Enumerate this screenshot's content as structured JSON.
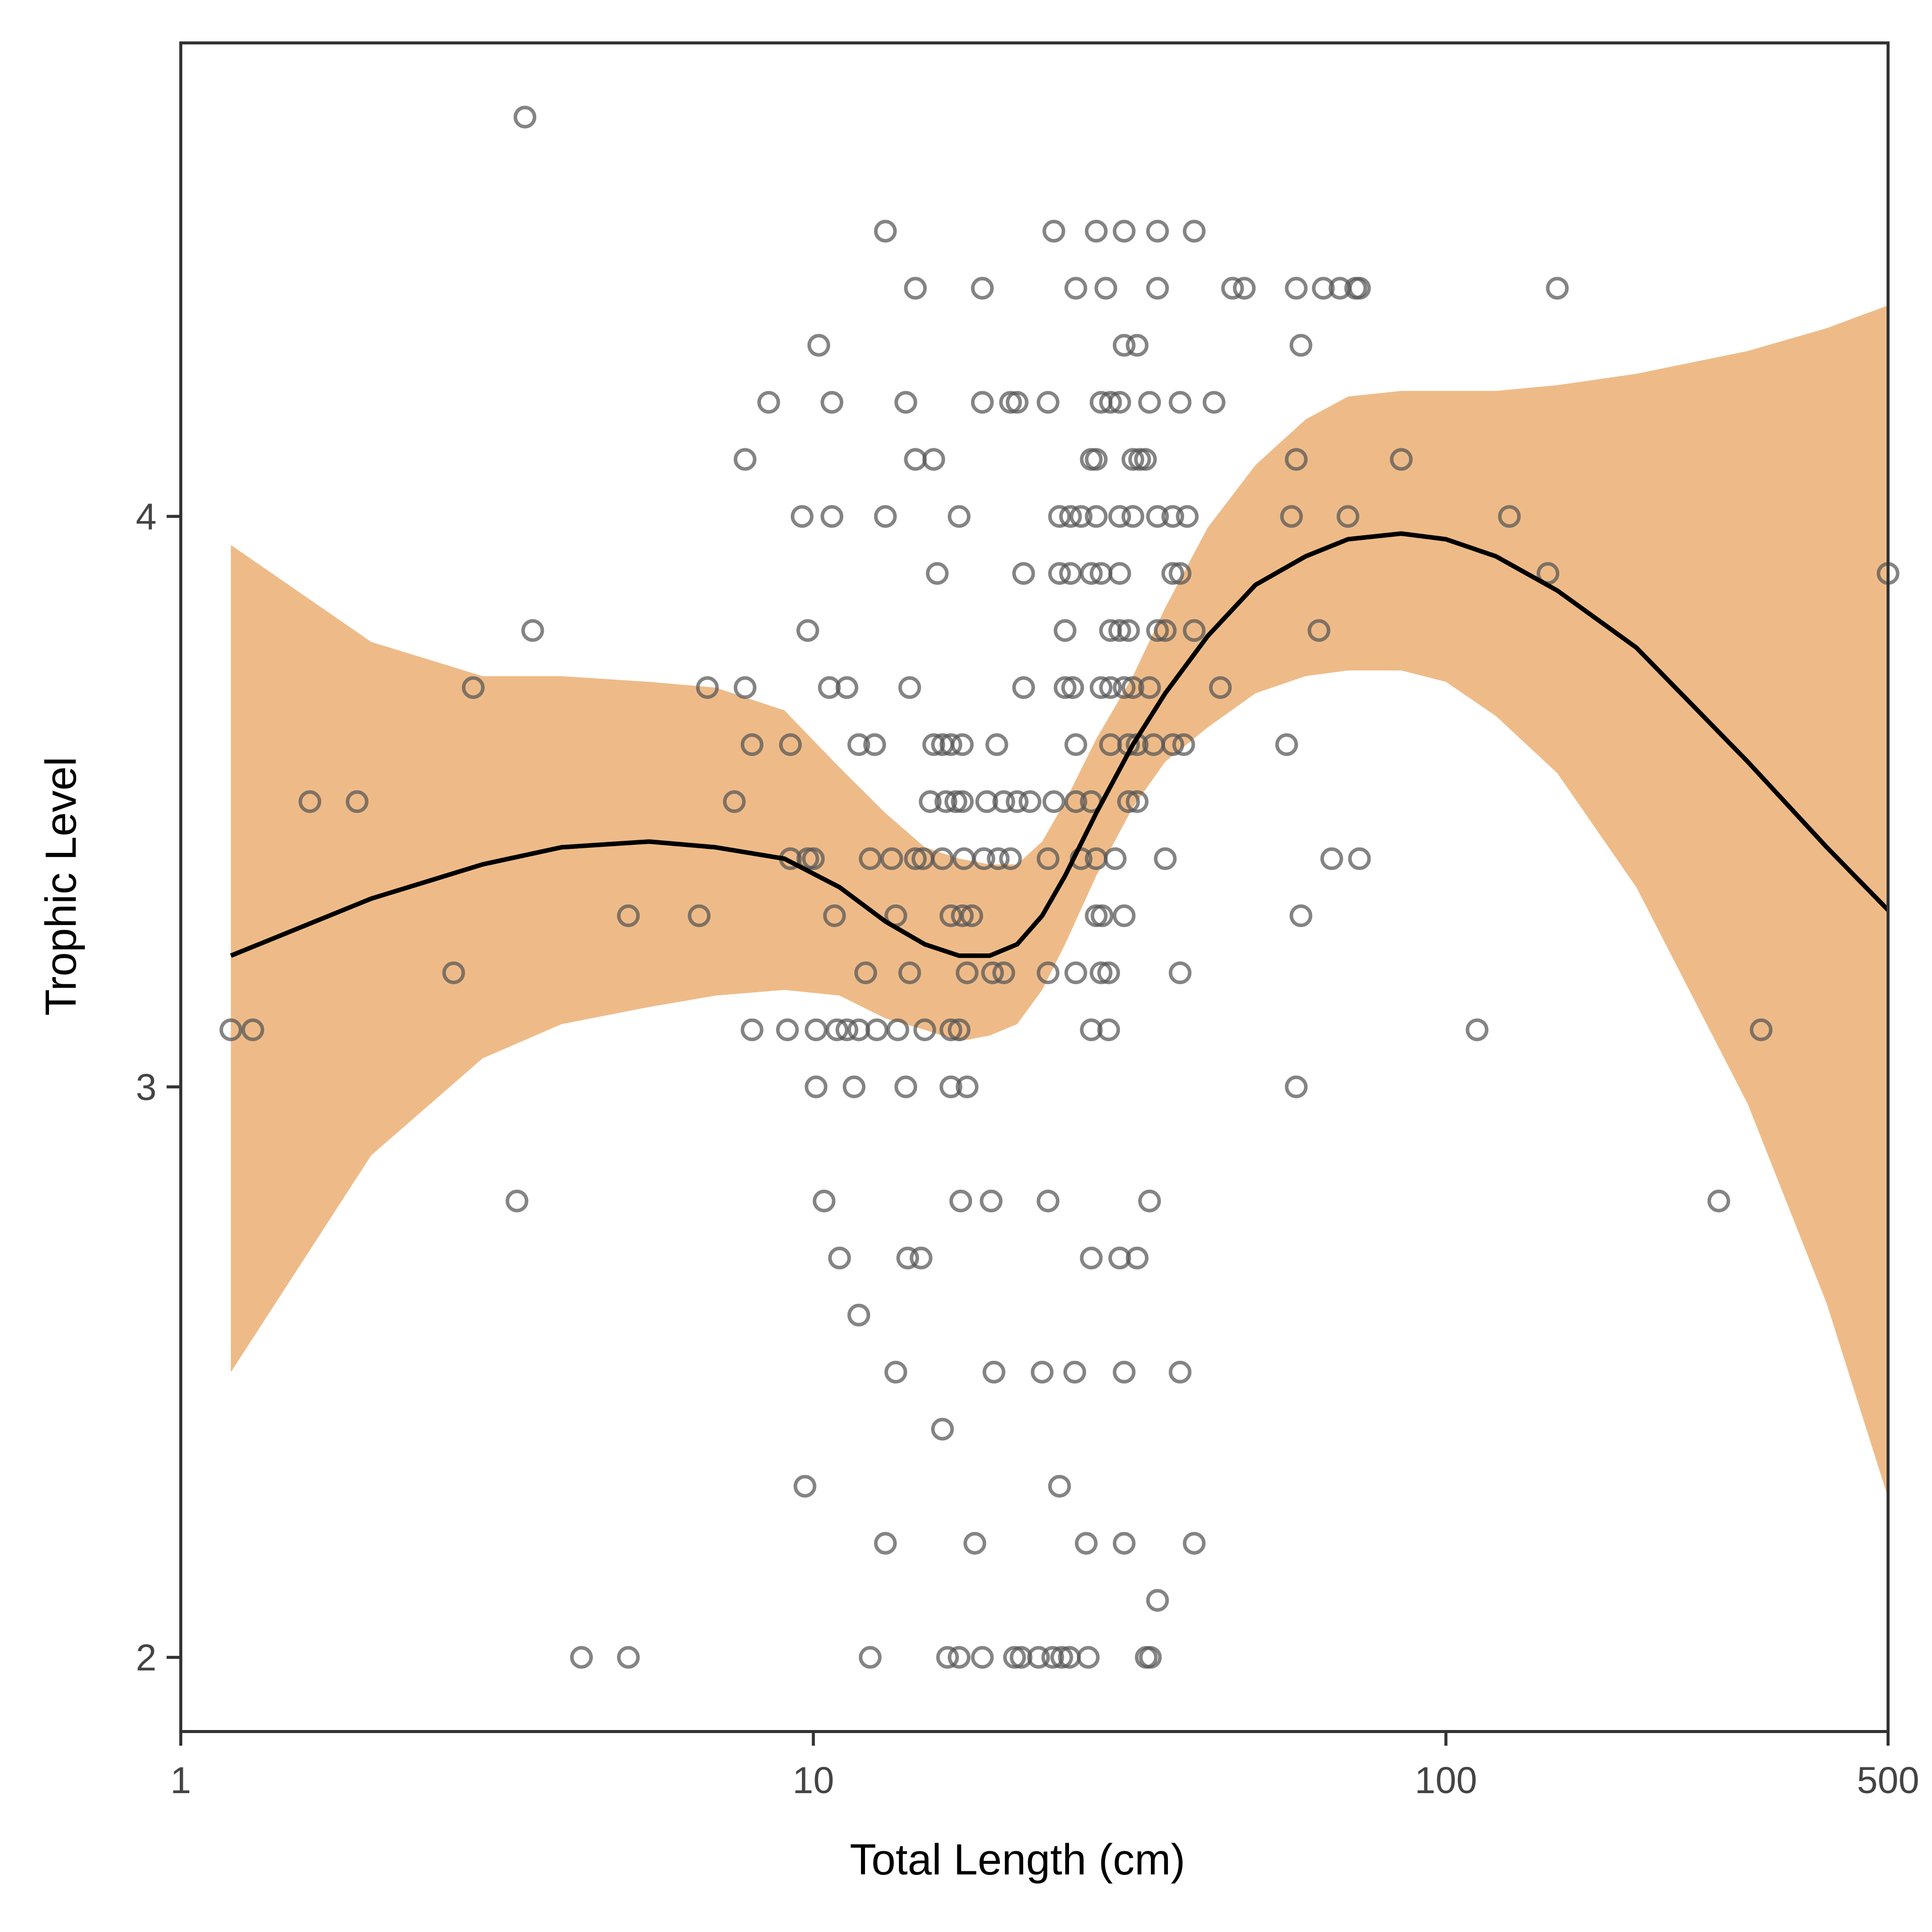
{
  "chart_data": {
    "type": "scatter",
    "title": "",
    "xlabel": "Total Length (cm)",
    "ylabel": "Trophic Level",
    "x_scale": "log10",
    "xlim": [
      1,
      500
    ],
    "ylim": [
      1.87,
      4.83
    ],
    "x_ticks": [
      1,
      10,
      100,
      500
    ],
    "x_tick_labels": [
      "1",
      "10",
      "100",
      "500"
    ],
    "y_ticks": [
      2,
      3,
      4
    ],
    "y_tick_labels": [
      "2",
      "3",
      "4"
    ],
    "grid": false,
    "legend": "none",
    "colors": {
      "points": "#555555",
      "smooth_line": "#000000",
      "confidence_band": "#eebb88"
    },
    "points": [
      {
        "x": 3.5,
        "y": 4.7
      },
      {
        "x": 13,
        "y": 4.5
      },
      {
        "x": 24,
        "y": 4.5
      },
      {
        "x": 28,
        "y": 4.5
      },
      {
        "x": 31,
        "y": 4.5
      },
      {
        "x": 35,
        "y": 4.5
      },
      {
        "x": 40,
        "y": 4.5
      },
      {
        "x": 14.5,
        "y": 4.4
      },
      {
        "x": 18.5,
        "y": 4.4
      },
      {
        "x": 26,
        "y": 4.4
      },
      {
        "x": 29,
        "y": 4.4
      },
      {
        "x": 35,
        "y": 4.4
      },
      {
        "x": 46,
        "y": 4.4
      },
      {
        "x": 48,
        "y": 4.4
      },
      {
        "x": 58,
        "y": 4.4
      },
      {
        "x": 64,
        "y": 4.4
      },
      {
        "x": 68,
        "y": 4.4
      },
      {
        "x": 72,
        "y": 4.4
      },
      {
        "x": 73,
        "y": 4.4
      },
      {
        "x": 150,
        "y": 4.4
      },
      {
        "x": 10.2,
        "y": 4.3
      },
      {
        "x": 31,
        "y": 4.3
      },
      {
        "x": 32.5,
        "y": 4.3
      },
      {
        "x": 59,
        "y": 4.3
      },
      {
        "x": 8.5,
        "y": 4.2
      },
      {
        "x": 10.7,
        "y": 4.2
      },
      {
        "x": 14,
        "y": 4.2
      },
      {
        "x": 18.5,
        "y": 4.2
      },
      {
        "x": 20.5,
        "y": 4.2
      },
      {
        "x": 21,
        "y": 4.2
      },
      {
        "x": 23.5,
        "y": 4.2
      },
      {
        "x": 28.5,
        "y": 4.2
      },
      {
        "x": 29.5,
        "y": 4.2
      },
      {
        "x": 30.5,
        "y": 4.2
      },
      {
        "x": 34,
        "y": 4.2
      },
      {
        "x": 38,
        "y": 4.2
      },
      {
        "x": 43,
        "y": 4.2
      },
      {
        "x": 7.8,
        "y": 4.1
      },
      {
        "x": 14.5,
        "y": 4.1
      },
      {
        "x": 15.5,
        "y": 4.1
      },
      {
        "x": 27.5,
        "y": 4.1
      },
      {
        "x": 28,
        "y": 4.1
      },
      {
        "x": 32,
        "y": 4.1
      },
      {
        "x": 32.8,
        "y": 4.1
      },
      {
        "x": 33.5,
        "y": 4.1
      },
      {
        "x": 58,
        "y": 4.1
      },
      {
        "x": 85,
        "y": 4.1
      },
      {
        "x": 9.6,
        "y": 4.0
      },
      {
        "x": 10.7,
        "y": 4.0
      },
      {
        "x": 13,
        "y": 4.0
      },
      {
        "x": 17,
        "y": 4.0
      },
      {
        "x": 24.5,
        "y": 4.0
      },
      {
        "x": 25.5,
        "y": 4.0
      },
      {
        "x": 26.5,
        "y": 4.0
      },
      {
        "x": 28,
        "y": 4.0
      },
      {
        "x": 30.5,
        "y": 4.0
      },
      {
        "x": 32,
        "y": 4.0
      },
      {
        "x": 35,
        "y": 4.0
      },
      {
        "x": 37,
        "y": 4.0
      },
      {
        "x": 39,
        "y": 4.0
      },
      {
        "x": 57,
        "y": 4.0
      },
      {
        "x": 70,
        "y": 4.0
      },
      {
        "x": 126,
        "y": 4.0
      },
      {
        "x": 15.7,
        "y": 3.9
      },
      {
        "x": 21.5,
        "y": 3.9
      },
      {
        "x": 24.5,
        "y": 3.9
      },
      {
        "x": 25.5,
        "y": 3.9
      },
      {
        "x": 27.5,
        "y": 3.9
      },
      {
        "x": 28.5,
        "y": 3.9
      },
      {
        "x": 30.5,
        "y": 3.9
      },
      {
        "x": 37,
        "y": 3.9
      },
      {
        "x": 38,
        "y": 3.9
      },
      {
        "x": 145,
        "y": 3.9
      },
      {
        "x": 500,
        "y": 3.9
      },
      {
        "x": 3.6,
        "y": 3.8
      },
      {
        "x": 9.8,
        "y": 3.8
      },
      {
        "x": 25,
        "y": 3.8
      },
      {
        "x": 29.5,
        "y": 3.8
      },
      {
        "x": 30.5,
        "y": 3.8
      },
      {
        "x": 31.5,
        "y": 3.8
      },
      {
        "x": 35,
        "y": 3.8
      },
      {
        "x": 36,
        "y": 3.8
      },
      {
        "x": 40,
        "y": 3.8
      },
      {
        "x": 63,
        "y": 3.8
      },
      {
        "x": 2.9,
        "y": 3.7
      },
      {
        "x": 6.8,
        "y": 3.7
      },
      {
        "x": 7.8,
        "y": 3.7
      },
      {
        "x": 10.6,
        "y": 3.7
      },
      {
        "x": 11.3,
        "y": 3.7
      },
      {
        "x": 14.2,
        "y": 3.7
      },
      {
        "x": 21.5,
        "y": 3.7
      },
      {
        "x": 25,
        "y": 3.7
      },
      {
        "x": 25.7,
        "y": 3.7
      },
      {
        "x": 28.5,
        "y": 3.7
      },
      {
        "x": 29.5,
        "y": 3.7
      },
      {
        "x": 31,
        "y": 3.7
      },
      {
        "x": 32,
        "y": 3.7
      },
      {
        "x": 34,
        "y": 3.7
      },
      {
        "x": 44,
        "y": 3.7
      },
      {
        "x": 8,
        "y": 3.6
      },
      {
        "x": 9.2,
        "y": 3.6
      },
      {
        "x": 11.8,
        "y": 3.6
      },
      {
        "x": 12.5,
        "y": 3.6
      },
      {
        "x": 15.5,
        "y": 3.6
      },
      {
        "x": 16,
        "y": 3.6
      },
      {
        "x": 16.5,
        "y": 3.6
      },
      {
        "x": 17.2,
        "y": 3.6
      },
      {
        "x": 19.5,
        "y": 3.6
      },
      {
        "x": 26,
        "y": 3.6
      },
      {
        "x": 29.5,
        "y": 3.6
      },
      {
        "x": 31.5,
        "y": 3.6
      },
      {
        "x": 32.5,
        "y": 3.6
      },
      {
        "x": 34.5,
        "y": 3.6
      },
      {
        "x": 37,
        "y": 3.6
      },
      {
        "x": 38.5,
        "y": 3.6
      },
      {
        "x": 56,
        "y": 3.6
      },
      {
        "x": 1.6,
        "y": 3.5
      },
      {
        "x": 1.9,
        "y": 3.5
      },
      {
        "x": 7.5,
        "y": 3.5
      },
      {
        "x": 15.3,
        "y": 3.5
      },
      {
        "x": 16.2,
        "y": 3.5
      },
      {
        "x": 16.8,
        "y": 3.5
      },
      {
        "x": 17.2,
        "y": 3.5
      },
      {
        "x": 18.8,
        "y": 3.5
      },
      {
        "x": 20,
        "y": 3.5
      },
      {
        "x": 21,
        "y": 3.5
      },
      {
        "x": 22,
        "y": 3.5
      },
      {
        "x": 24,
        "y": 3.5
      },
      {
        "x": 26,
        "y": 3.5
      },
      {
        "x": 27.5,
        "y": 3.5
      },
      {
        "x": 31.5,
        "y": 3.5
      },
      {
        "x": 32.5,
        "y": 3.5
      },
      {
        "x": 9.2,
        "y": 3.4
      },
      {
        "x": 9.8,
        "y": 3.4
      },
      {
        "x": 10,
        "y": 3.4
      },
      {
        "x": 12.3,
        "y": 3.4
      },
      {
        "x": 13.3,
        "y": 3.4
      },
      {
        "x": 14.5,
        "y": 3.4
      },
      {
        "x": 14.9,
        "y": 3.4
      },
      {
        "x": 16,
        "y": 3.4
      },
      {
        "x": 17.3,
        "y": 3.4
      },
      {
        "x": 18.6,
        "y": 3.4
      },
      {
        "x": 19.6,
        "y": 3.4
      },
      {
        "x": 20.5,
        "y": 3.4
      },
      {
        "x": 23.5,
        "y": 3.4
      },
      {
        "x": 26.5,
        "y": 3.4
      },
      {
        "x": 28,
        "y": 3.4
      },
      {
        "x": 30,
        "y": 3.4
      },
      {
        "x": 36,
        "y": 3.4
      },
      {
        "x": 66,
        "y": 3.4
      },
      {
        "x": 73,
        "y": 3.4
      },
      {
        "x": 5.1,
        "y": 3.3
      },
      {
        "x": 6.6,
        "y": 3.3
      },
      {
        "x": 10.8,
        "y": 3.3
      },
      {
        "x": 13.5,
        "y": 3.3
      },
      {
        "x": 16.5,
        "y": 3.3
      },
      {
        "x": 17.2,
        "y": 3.3
      },
      {
        "x": 17.8,
        "y": 3.3
      },
      {
        "x": 28,
        "y": 3.3
      },
      {
        "x": 28.6,
        "y": 3.3
      },
      {
        "x": 31,
        "y": 3.3
      },
      {
        "x": 59,
        "y": 3.3
      },
      {
        "x": 2.7,
        "y": 3.2
      },
      {
        "x": 12.1,
        "y": 3.2
      },
      {
        "x": 14.2,
        "y": 3.2
      },
      {
        "x": 17.5,
        "y": 3.2
      },
      {
        "x": 19.2,
        "y": 3.2
      },
      {
        "x": 20,
        "y": 3.2
      },
      {
        "x": 23.5,
        "y": 3.2
      },
      {
        "x": 26,
        "y": 3.2
      },
      {
        "x": 28.5,
        "y": 3.2
      },
      {
        "x": 29.3,
        "y": 3.2
      },
      {
        "x": 38,
        "y": 3.2
      },
      {
        "x": 1.2,
        "y": 3.1
      },
      {
        "x": 1.3,
        "y": 3.1
      },
      {
        "x": 8,
        "y": 3.1
      },
      {
        "x": 9.1,
        "y": 3.1
      },
      {
        "x": 10.1,
        "y": 3.1
      },
      {
        "x": 10.9,
        "y": 3.1
      },
      {
        "x": 11.3,
        "y": 3.1
      },
      {
        "x": 11.8,
        "y": 3.1
      },
      {
        "x": 12.6,
        "y": 3.1
      },
      {
        "x": 13.6,
        "y": 3.1
      },
      {
        "x": 15,
        "y": 3.1
      },
      {
        "x": 16.5,
        "y": 3.1
      },
      {
        "x": 17,
        "y": 3.1
      },
      {
        "x": 27.5,
        "y": 3.1
      },
      {
        "x": 29.3,
        "y": 3.1
      },
      {
        "x": 112,
        "y": 3.1
      },
      {
        "x": 315,
        "y": 3.1
      },
      {
        "x": 10.1,
        "y": 3.0
      },
      {
        "x": 11.6,
        "y": 3.0
      },
      {
        "x": 14,
        "y": 3.0
      },
      {
        "x": 16.5,
        "y": 3.0
      },
      {
        "x": 17.5,
        "y": 3.0
      },
      {
        "x": 58,
        "y": 3.0
      },
      {
        "x": 3.4,
        "y": 2.8
      },
      {
        "x": 10.4,
        "y": 2.8
      },
      {
        "x": 17.1,
        "y": 2.8
      },
      {
        "x": 19.1,
        "y": 2.8
      },
      {
        "x": 23.5,
        "y": 2.8
      },
      {
        "x": 34,
        "y": 2.8
      },
      {
        "x": 270,
        "y": 2.8
      },
      {
        "x": 11,
        "y": 2.7
      },
      {
        "x": 14.1,
        "y": 2.7
      },
      {
        "x": 14.8,
        "y": 2.7
      },
      {
        "x": 27.5,
        "y": 2.7
      },
      {
        "x": 30.5,
        "y": 2.7
      },
      {
        "x": 32.5,
        "y": 2.7
      },
      {
        "x": 11.8,
        "y": 2.6
      },
      {
        "x": 13.5,
        "y": 2.5
      },
      {
        "x": 19.3,
        "y": 2.5
      },
      {
        "x": 23,
        "y": 2.5
      },
      {
        "x": 25.9,
        "y": 2.5
      },
      {
        "x": 31,
        "y": 2.5
      },
      {
        "x": 38,
        "y": 2.5
      },
      {
        "x": 16,
        "y": 2.4
      },
      {
        "x": 9.7,
        "y": 2.3
      },
      {
        "x": 24.5,
        "y": 2.3
      },
      {
        "x": 13,
        "y": 2.2
      },
      {
        "x": 18,
        "y": 2.2
      },
      {
        "x": 27,
        "y": 2.2
      },
      {
        "x": 31,
        "y": 2.2
      },
      {
        "x": 40,
        "y": 2.2
      },
      {
        "x": 35,
        "y": 2.1
      },
      {
        "x": 4.3,
        "y": 2.0
      },
      {
        "x": 5.1,
        "y": 2.0
      },
      {
        "x": 12.3,
        "y": 2.0
      },
      {
        "x": 16.3,
        "y": 2.0
      },
      {
        "x": 17,
        "y": 2.0
      },
      {
        "x": 18.5,
        "y": 2.0
      },
      {
        "x": 20.8,
        "y": 2.0
      },
      {
        "x": 21.3,
        "y": 2.0
      },
      {
        "x": 22.7,
        "y": 2.0
      },
      {
        "x": 23.9,
        "y": 2.0
      },
      {
        "x": 24.7,
        "y": 2.0
      },
      {
        "x": 25.4,
        "y": 2.0
      },
      {
        "x": 27.2,
        "y": 2.0
      },
      {
        "x": 33.6,
        "y": 2.0
      },
      {
        "x": 34.1,
        "y": 2.0
      }
    ],
    "smooth": {
      "x": [
        1.2,
        2,
        3,
        4,
        5.5,
        7,
        9,
        11,
        13,
        15,
        17,
        19,
        21,
        23,
        25,
        28,
        32,
        36,
        42,
        50,
        60,
        70,
        85,
        100,
        120,
        150,
        200,
        300,
        400,
        500
      ],
      "y": [
        3.23,
        3.33,
        3.39,
        3.42,
        3.43,
        3.42,
        3.4,
        3.35,
        3.29,
        3.25,
        3.23,
        3.23,
        3.25,
        3.3,
        3.37,
        3.48,
        3.6,
        3.69,
        3.79,
        3.88,
        3.93,
        3.96,
        3.97,
        3.96,
        3.93,
        3.87,
        3.77,
        3.57,
        3.42,
        3.31
      ],
      "lower": [
        2.5,
        2.88,
        3.05,
        3.11,
        3.14,
        3.16,
        3.17,
        3.16,
        3.12,
        3.1,
        3.08,
        3.09,
        3.11,
        3.17,
        3.25,
        3.37,
        3.49,
        3.57,
        3.63,
        3.69,
        3.72,
        3.73,
        3.73,
        3.71,
        3.65,
        3.55,
        3.35,
        2.97,
        2.62,
        2.28
      ],
      "upper": [
        3.95,
        3.78,
        3.72,
        3.72,
        3.71,
        3.7,
        3.66,
        3.56,
        3.48,
        3.42,
        3.4,
        3.39,
        3.39,
        3.43,
        3.5,
        3.61,
        3.72,
        3.84,
        3.98,
        4.09,
        4.17,
        4.21,
        4.22,
        4.22,
        4.22,
        4.23,
        4.25,
        4.29,
        4.33,
        4.37
      ]
    }
  }
}
